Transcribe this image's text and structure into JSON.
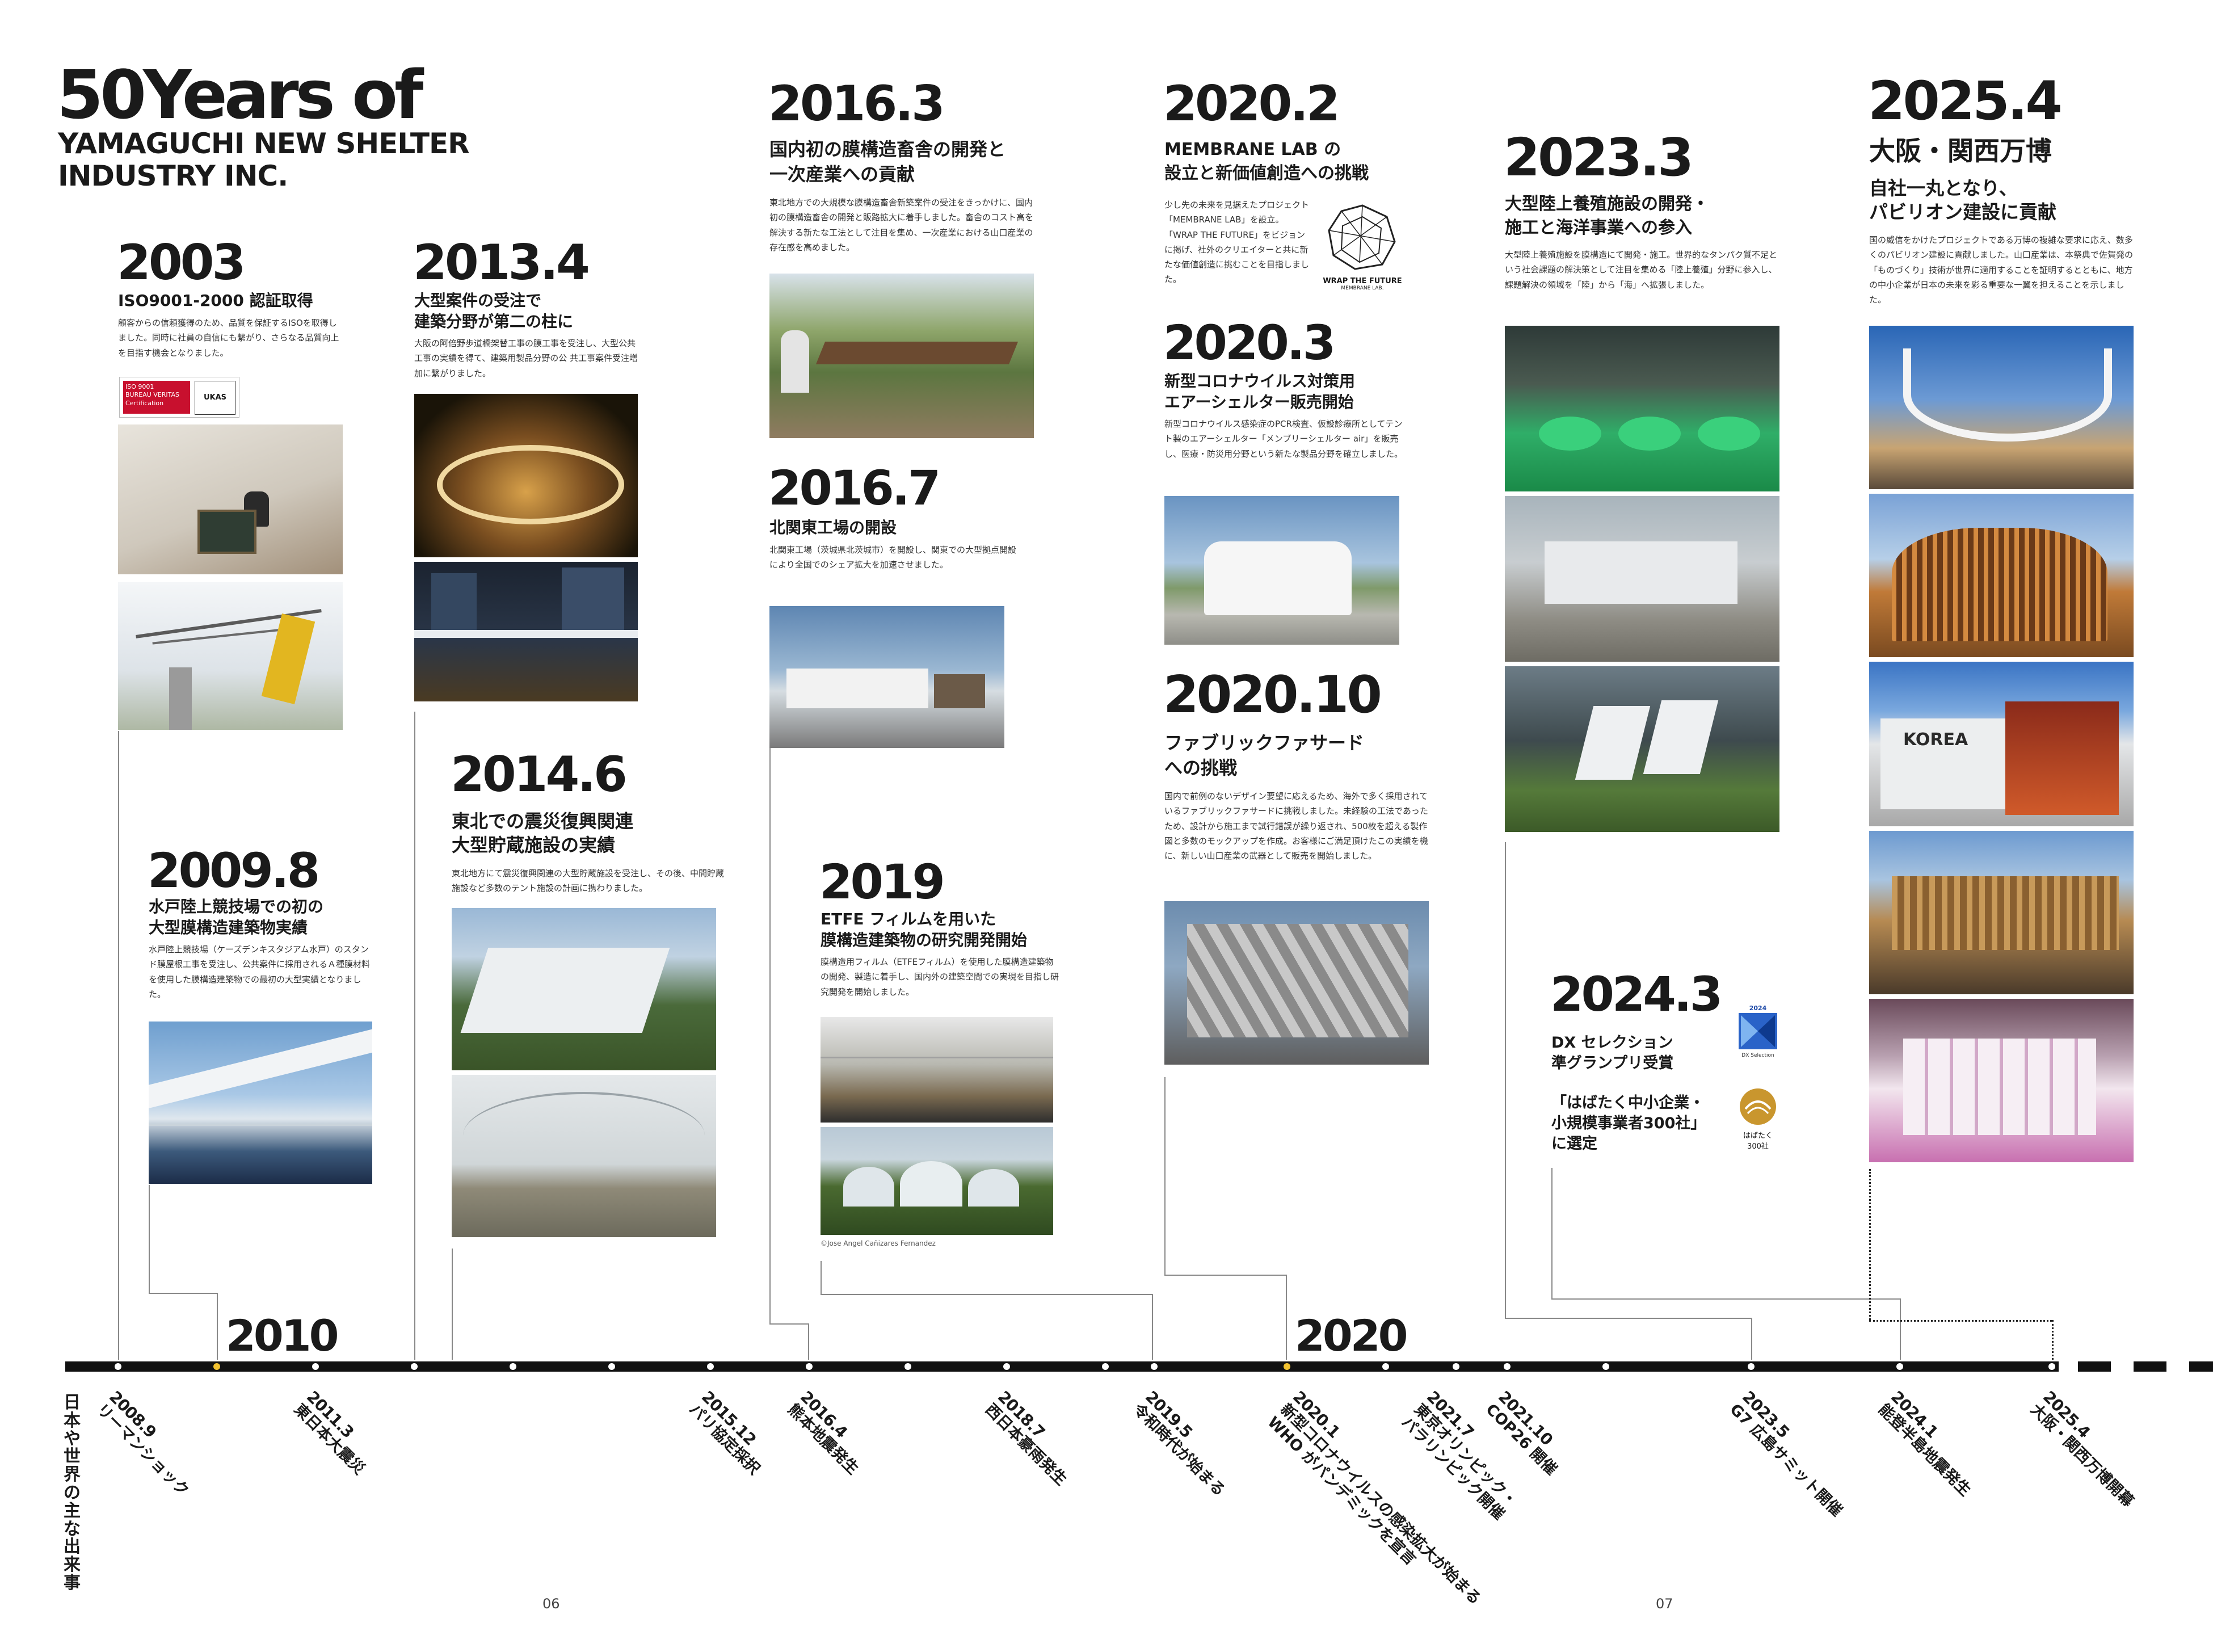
{
  "title": {
    "big": "50Years of",
    "sub1": "YAMAGUCHI NEW SHELTER",
    "sub2": "INDUSTRY INC."
  },
  "milestones": {
    "m2003": {
      "year": "2003",
      "head": "ISO9001-2000 認証取得",
      "body": "顧客からの信頼獲得のため、品質を保証するISOを取得しました。同時に社員の自信にも繋がり、さらなる品質向上を目指す機会となりました。",
      "logo1": "ISO 9001",
      "logo2": "BUREAU VERITAS Certification",
      "logo3": "UKAS"
    },
    "m2009": {
      "year": "2009.8",
      "head1": "水戸陸上競技場での初の",
      "head2": "大型膜構造建築物実績",
      "body": "水戸陸上競技場（ケーズデンキスタジアム水戸）のスタンド膜屋根工事を受注し、公共案件に採用されるＡ種膜材料を使用した膜構造建築物での最初の大型実績となりました。"
    },
    "m2013": {
      "year": "2013.4",
      "head1": "大型案件の受注で",
      "head2": "建築分野が第二の柱に",
      "body": "大阪の阿倍野歩道橋架替工事の膜工事を受注し、大型公共工事の実績を得て、建築用製品分野の公 共工事案件受注増加に繋がりました。"
    },
    "m2014": {
      "year": "2014.6",
      "head1": "東北での震災復興関連",
      "head2": "大型貯蔵施設の実績",
      "body": "東北地方にて震災復興関連の大型貯蔵施設を受注し、その後、中間貯蔵施設など多数のテント施設の計画に携わりました。"
    },
    "m2016a": {
      "year": "2016.3",
      "head1": "国内初の膜構造畜舎の開発と",
      "head2": "一次産業への貢献",
      "body": "東北地方での大規模な膜構造畜舎新築案件の受注をきっかけに、国内初の膜構造畜舎の開発と販路拡大に着手しました。畜舎のコスト高を解決する新たな工法として注目を集め、一次産業における山口産業の存在感を高めました。"
    },
    "m2016b": {
      "year": "2016.7",
      "head": "北関東工場の開設",
      "body": "北関東工場（茨城県北茨城市）を開設し、関東での大型拠点開設により全国でのシェア拡大を加速させました。"
    },
    "m2019": {
      "year": "2019",
      "head1": "ETFE フィルムを用いた",
      "head2": "膜構造建築物の研究開発開始",
      "body": "膜構造用フィルム（ETFEフィルム）を使用した膜構造建築物の開発、製造に着手し、国内外の建築空間での実現を目指し研究開発を開始しました。",
      "credit": "©Jose Angel Cañizares Fernandez"
    },
    "m2020a": {
      "year": "2020.2",
      "head1": "MEMBRANE LAB の",
      "head2": "設立と新価値創造への挑戦",
      "body": "少し先の未来を見据えたプロジェクト「MEMBRANE LAB」を設立。「WRAP THE FUTURE」をビジョンに掲げ、社外のクリエイターと共に新たな価値創造に挑むことを目指しました。",
      "logo1": "WRAP THE FUTURE",
      "logo2": "MEMBRANE LAB."
    },
    "m2020b": {
      "year": "2020.3",
      "head1": "新型コロナウイルス対策用",
      "head2": "エアーシェルター販売開始",
      "body": "新型コロナウイルス感染症のPCR検査、仮設診療所としてテント製のエアーシェルター「メンブリーシェルター air」を販売し、医療・防災用分野という新たな製品分野を確立しました。"
    },
    "m2020c": {
      "year": "2020.10",
      "head1": "ファブリックファサード",
      "head2": "への挑戦",
      "body": "国内で前例のないデザイン要望に応えるため、海外で多く採用されているファブリックファサードに挑戦しました。未経験の工法であったため、設計から施工まで試行錯誤が繰り返され、500枚を超える製作図と多数のモックアップを作成。お客様にご満足頂けたこの実績を機に、新しい山口産業の武器として販売を開始しました。"
    },
    "m2023": {
      "year": "2023.3",
      "head1": "大型陸上養殖施設の開発・",
      "head2": "施工と海洋事業への参入",
      "body": "大型陸上養殖施設を膜構造にて開発・施工。世界的なタンパク質不足という社会課題の解決策として注目を集める「陸上養殖」分野に参入し、課題解決の領域を「陸」から「海」へ拡張しました。"
    },
    "m2024": {
      "year": "2024.3",
      "head1": "DX セレクション",
      "head2": "準グランプリ受賞",
      "head3": "「はばたく中小企業・",
      "head4": "小規模事業者300社」",
      "head5": "に選定",
      "logo1": "2024",
      "logo2": "DX Selection",
      "logo3": "はばたく",
      "logo4": "300社"
    },
    "m2025": {
      "year": "2025.4",
      "head1": "大阪・関西万博",
      "head2": "自社一丸となり、",
      "head3": "パビリオン建設に貢献",
      "body": "国の威信をかけたプロジェクトである万博の複雑な要求に応え、数多くのパビリオン建設に貢献しました。山口産業は、本祭典で佐賀発の「ものづくり」技術が世界に適用することを証明するとともに、地方の中小企業が日本の未来を彩る重要な一翼を担えることを示しました。",
      "korea": "KOREA"
    }
  },
  "timeline": {
    "decade1": "2010",
    "decade2": "2020",
    "side_label": "日本や世界の主な出来事",
    "events": [
      {
        "date": "2008.9",
        "text": "リーマンショック"
      },
      {
        "date": "2011.3",
        "text": "東日本大震災"
      },
      {
        "date": "2015.12",
        "text": "パリ協定採択"
      },
      {
        "date": "2016.4",
        "text": "熊本地震発生"
      },
      {
        "date": "2018.7",
        "text": "西日本豪雨発生"
      },
      {
        "date": "2019.5",
        "text": "令和時代が始まる"
      },
      {
        "date": "2020.1",
        "text": "新型コロナウイルスの感染拡大が始まる",
        "text2": "WHO がパンデミックを宣言"
      },
      {
        "date": "2021.7",
        "text": "東京オリンピック・",
        "text2": "パラリンピック開催"
      },
      {
        "date": "2021.10",
        "text": "COP26 開催"
      },
      {
        "date": "2023.5",
        "text": "G7 広島サミット開催"
      },
      {
        "date": "2024.1",
        "text": "能登半島地震発生"
      },
      {
        "date": "2025.4",
        "text": "大阪・関西万博開幕"
      }
    ]
  },
  "pages": {
    "left": "06",
    "right": "07"
  }
}
